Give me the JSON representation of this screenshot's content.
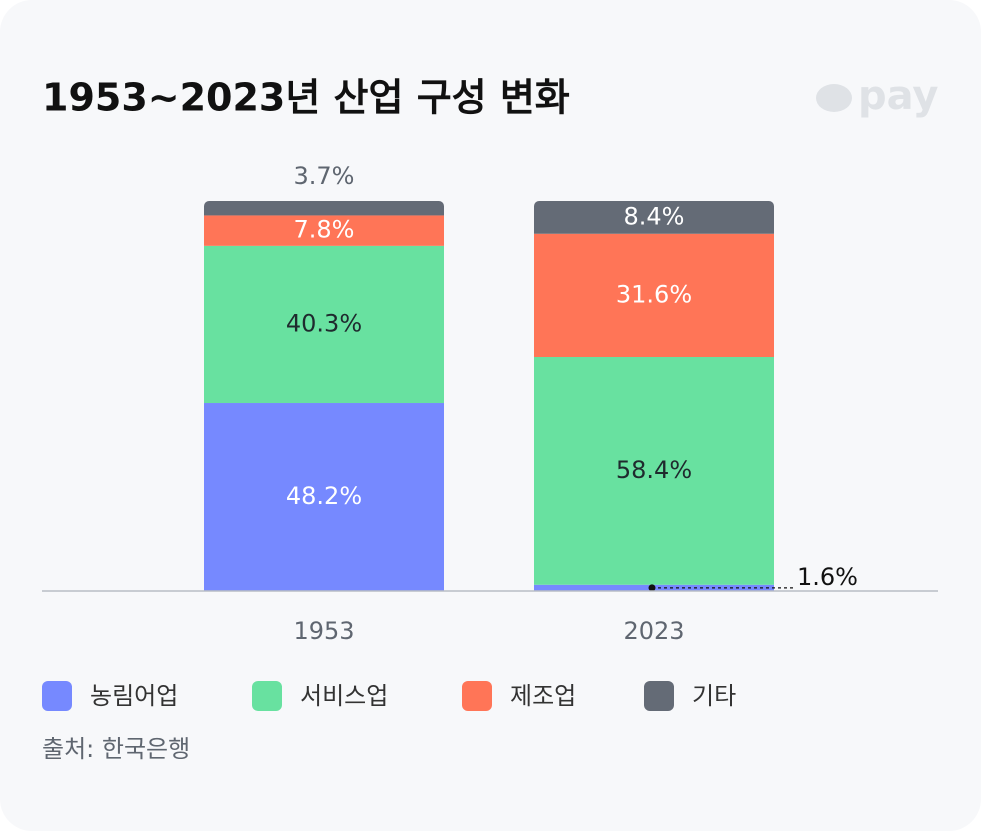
{
  "chart_data": {
    "type": "stacked_bar",
    "title": "1953~2023년 산업 구성 변화",
    "logo": "pay",
    "categories": [
      "1953",
      "2023"
    ],
    "ylim": [
      0,
      100
    ],
    "series": [
      {
        "name": "농림어업",
        "color": "#7689ff",
        "label_color": "#ffffff",
        "values": [
          48.2,
          1.6
        ],
        "value_labels": [
          "48.2%",
          "1.6%"
        ]
      },
      {
        "name": "서비스업",
        "color": "#68e1a0",
        "label_color": "#1f2a2e",
        "values": [
          40.3,
          58.4
        ],
        "value_labels": [
          "40.3%",
          "58.4%"
        ]
      },
      {
        "name": "제조업",
        "color": "#ff7557",
        "label_color": "#ffffff",
        "values": [
          7.8,
          31.6
        ],
        "value_labels": [
          "7.8%",
          "31.6%"
        ]
      },
      {
        "name": "기타",
        "color": "#646b76",
        "label_color": "#ffffff",
        "values": [
          3.7,
          8.4
        ],
        "value_labels": [
          "3.7%",
          "8.4%"
        ]
      }
    ],
    "source": "출처: 한국은행"
  }
}
